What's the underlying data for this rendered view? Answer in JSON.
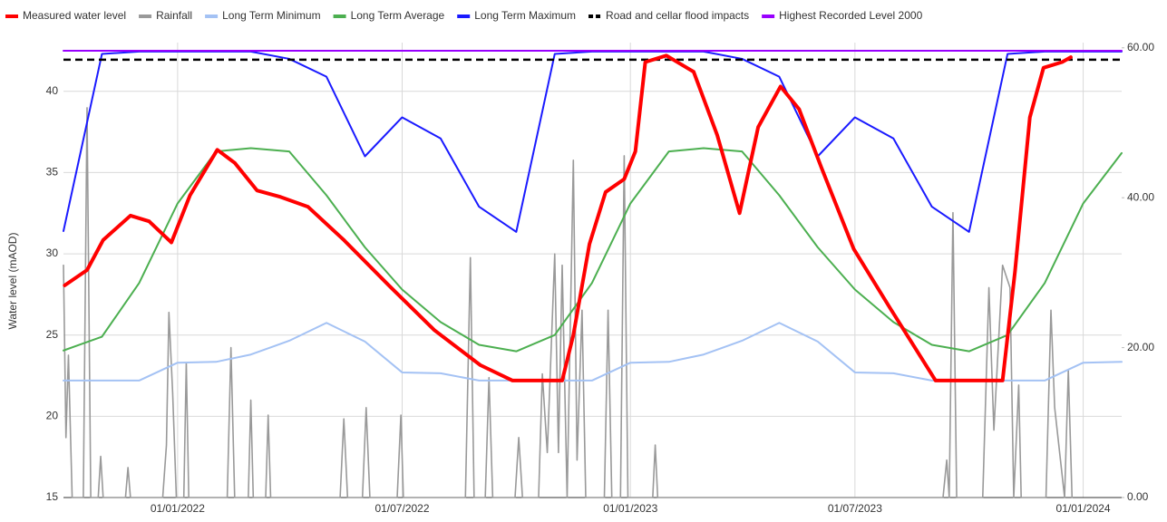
{
  "chart_data": {
    "type": "line",
    "y_label": "Water level (mAOD)",
    "xlim": [
      "2021-10-01",
      "2024-02-01"
    ],
    "xticks": [
      {
        "value": "2022-01-01",
        "label": "01/01/2022"
      },
      {
        "value": "2022-07-01",
        "label": "01/07/2022"
      },
      {
        "value": "2023-01-01",
        "label": "01/01/2023"
      },
      {
        "value": "2023-07-01",
        "label": "01/07/2023"
      },
      {
        "value": "2024-01-01",
        "label": "01/01/2024"
      }
    ],
    "ylim": [
      15,
      43
    ],
    "yticks": [
      15,
      20,
      25,
      30,
      35,
      40
    ],
    "y2lim": [
      0,
      60.7
    ],
    "y2ticks": [
      {
        "value": 0,
        "label": "0.00"
      },
      {
        "value": 20,
        "label": "20.00"
      },
      {
        "value": 40,
        "label": "40.00"
      },
      {
        "value": 60,
        "label": "60.00"
      }
    ],
    "grid": true,
    "legend": "top",
    "series": [
      {
        "name": "Measured water level",
        "color": "#ff0000",
        "x": [
          "2021-10-02",
          "2021-10-20",
          "2021-11-02",
          "2021-11-24",
          "2021-12-09",
          "2021-12-27",
          "2022-01-11",
          "2022-02-02",
          "2022-02-16",
          "2022-03-06",
          "2022-03-25",
          "2022-04-16",
          "2022-05-15",
          "2022-06-21",
          "2022-07-27",
          "2022-09-02",
          "2022-09-28",
          "2022-11-07",
          "2022-11-16",
          "2022-11-29",
          "2022-12-12",
          "2022-12-27",
          "2023-01-05",
          "2023-01-13",
          "2023-01-30",
          "2023-02-21",
          "2023-03-12",
          "2023-03-30",
          "2023-04-14",
          "2023-05-02",
          "2023-05-17",
          "2023-06-04",
          "2023-06-30",
          "2023-07-29",
          "2023-09-04",
          "2023-10-28",
          "2023-11-07",
          "2023-11-19",
          "2023-11-30",
          "2023-12-15",
          "2023-12-22"
        ],
        "values": [
          28.06,
          29.0,
          30.85,
          32.35,
          32.0,
          30.7,
          33.6,
          36.4,
          35.6,
          33.9,
          33.5,
          32.9,
          30.85,
          28.0,
          25.3,
          23.15,
          22.2,
          22.2,
          25.0,
          30.6,
          33.8,
          34.6,
          36.3,
          41.8,
          42.2,
          41.2,
          37.3,
          32.5,
          37.8,
          40.3,
          38.9,
          35.3,
          30.3,
          26.7,
          22.2,
          22.2,
          28.9,
          38.4,
          41.45,
          41.8,
          42.1
        ]
      },
      {
        "name": "Rainfall",
        "color": "#999999",
        "axis": "y2",
        "x": [
          "2021-10-01",
          "2021-10-03",
          "2021-10-05",
          "2021-10-08",
          "2021-10-17",
          "2021-10-20",
          "2021-10-23",
          "2021-10-29",
          "2021-10-31",
          "2021-11-02",
          "2021-11-20",
          "2021-11-22",
          "2021-11-24",
          "2021-12-20",
          "2021-12-23",
          "2021-12-25",
          "2021-12-28",
          "2021-12-31",
          "2022-01-06",
          "2022-01-08",
          "2022-01-10",
          "2022-02-10",
          "2022-02-13",
          "2022-02-16",
          "2022-02-27",
          "2022-03-01",
          "2022-03-03",
          "2022-03-13",
          "2022-03-15",
          "2022-03-17",
          "2022-05-12",
          "2022-05-15",
          "2022-05-18",
          "2022-05-30",
          "2022-06-02",
          "2022-06-05",
          "2022-06-27",
          "2022-06-30",
          "2022-07-02",
          "2022-08-21",
          "2022-08-25",
          "2022-08-28",
          "2022-09-06",
          "2022-09-09",
          "2022-09-12",
          "2022-09-30",
          "2022-10-03",
          "2022-10-06",
          "2022-10-19",
          "2022-10-22",
          "2022-10-26",
          "2022-11-01",
          "2022-11-04",
          "2022-11-07",
          "2022-11-11",
          "2022-11-16",
          "2022-11-19",
          "2022-11-23",
          "2022-11-26",
          "2022-12-11",
          "2022-12-14",
          "2022-12-17",
          "2022-12-24",
          "2022-12-27",
          "2022-12-30",
          "2023-01-19",
          "2023-01-21",
          "2023-01-23",
          "2023-09-10",
          "2023-09-13",
          "2023-09-15",
          "2023-09-18",
          "2023-09-21",
          "2023-10-12",
          "2023-10-17",
          "2023-10-21",
          "2023-10-28",
          "2023-11-03",
          "2023-11-06",
          "2023-11-10",
          "2023-11-12",
          "2023-12-02",
          "2023-12-06",
          "2023-12-09",
          "2023-12-17",
          "2023-12-20",
          "2023-12-23"
        ],
        "values": [
          31,
          8,
          19,
          0,
          0,
          52,
          0,
          0,
          5.5,
          0,
          0,
          4,
          0,
          0,
          7,
          24.7,
          14,
          0,
          0,
          18,
          0,
          0,
          20,
          0,
          0,
          13,
          0,
          0,
          11,
          0,
          0,
          10.5,
          0,
          0,
          12,
          0,
          0,
          11,
          0,
          0,
          32,
          0,
          0,
          16,
          0,
          0,
          8,
          0,
          0,
          16.5,
          6,
          32.5,
          6,
          31,
          0,
          45,
          5,
          25,
          0,
          0,
          25,
          0,
          0,
          45.6,
          0,
          0,
          7,
          0,
          0,
          5,
          0,
          38,
          0,
          0,
          28,
          9,
          31,
          28,
          0,
          15,
          0,
          0,
          25,
          12,
          0,
          17,
          0
        ]
      },
      {
        "name": "Long Term Minimum",
        "color": "#a4c2f4",
        "x": [
          "2021-10-01",
          "2021-11-01",
          "2021-12-01",
          "2022-01-01",
          "2022-02-01",
          "2022-03-01",
          "2022-04-01",
          "2022-05-01",
          "2022-06-01",
          "2022-07-01",
          "2022-08-01",
          "2022-09-01",
          "2022-10-01",
          "2022-11-01",
          "2022-12-01",
          "2023-01-01",
          "2023-02-01",
          "2023-03-01",
          "2023-04-01",
          "2023-05-01",
          "2023-06-01",
          "2023-07-01",
          "2023-08-01",
          "2023-09-01",
          "2023-10-01",
          "2023-11-01",
          "2023-12-01",
          "2024-01-01",
          "2024-02-01"
        ],
        "values": [
          22.2,
          22.2,
          22.2,
          23.3,
          23.35,
          23.8,
          24.65,
          25.75,
          24.6,
          22.7,
          22.65,
          22.2,
          22.2,
          22.2,
          22.2,
          23.3,
          23.35,
          23.8,
          24.65,
          25.75,
          24.6,
          22.7,
          22.65,
          22.2,
          22.2,
          22.2,
          22.2,
          23.3,
          23.35
        ]
      },
      {
        "name": "Long Term Average",
        "color": "#4caf50",
        "x": [
          "2021-10-01",
          "2021-11-01",
          "2021-12-01",
          "2022-01-01",
          "2022-02-01",
          "2022-03-01",
          "2022-04-01",
          "2022-05-01",
          "2022-06-01",
          "2022-07-01",
          "2022-08-01",
          "2022-09-01",
          "2022-10-01",
          "2022-11-01",
          "2022-12-01",
          "2023-01-01",
          "2023-02-01",
          "2023-03-01",
          "2023-04-01",
          "2023-05-01",
          "2023-06-01",
          "2023-07-01",
          "2023-08-01",
          "2023-09-01",
          "2023-10-01",
          "2023-11-01",
          "2023-12-01",
          "2024-01-01",
          "2024-02-01"
        ],
        "values": [
          24.05,
          24.9,
          28.2,
          33.1,
          36.3,
          36.5,
          36.3,
          33.6,
          30.4,
          27.8,
          25.8,
          24.4,
          24.0,
          25.0,
          28.2,
          33.1,
          36.3,
          36.5,
          36.3,
          33.6,
          30.4,
          27.8,
          25.8,
          24.4,
          24.0,
          25.0,
          28.2,
          33.1,
          36.2
        ]
      },
      {
        "name": "Long Term Maximum",
        "color": "#1a1aff",
        "x": [
          "2021-10-01",
          "2021-11-01",
          "2021-12-01",
          "2022-01-01",
          "2022-02-01",
          "2022-03-01",
          "2022-04-01",
          "2022-05-01",
          "2022-06-01",
          "2022-07-01",
          "2022-08-01",
          "2022-09-01",
          "2022-10-01",
          "2022-11-01",
          "2022-12-01",
          "2023-01-01",
          "2023-02-01",
          "2023-03-01",
          "2023-04-01",
          "2023-05-01",
          "2023-06-01",
          "2023-07-01",
          "2023-08-01",
          "2023-09-01",
          "2023-10-01",
          "2023-11-01",
          "2023-12-01",
          "2024-01-01",
          "2024-02-01"
        ],
        "values": [
          31.4,
          42.3,
          42.45,
          42.45,
          42.45,
          42.45,
          42.0,
          40.9,
          36.0,
          38.4,
          37.1,
          32.9,
          31.35,
          42.3,
          42.45,
          42.45,
          42.45,
          42.45,
          42.0,
          40.9,
          36.0,
          38.4,
          37.1,
          32.9,
          31.35,
          42.3,
          42.45,
          42.45,
          42.45
        ]
      },
      {
        "name": "Road and cellar flood impacts",
        "color": "#000000",
        "dash": true,
        "x": [
          "2021-10-01",
          "2024-02-01"
        ],
        "values": [
          41.95,
          41.95
        ]
      },
      {
        "name": "Highest Recorded Level 2000",
        "color": "#9900ff",
        "x": [
          "2021-10-01",
          "2024-02-01"
        ],
        "values": [
          42.5,
          42.5
        ]
      }
    ]
  }
}
